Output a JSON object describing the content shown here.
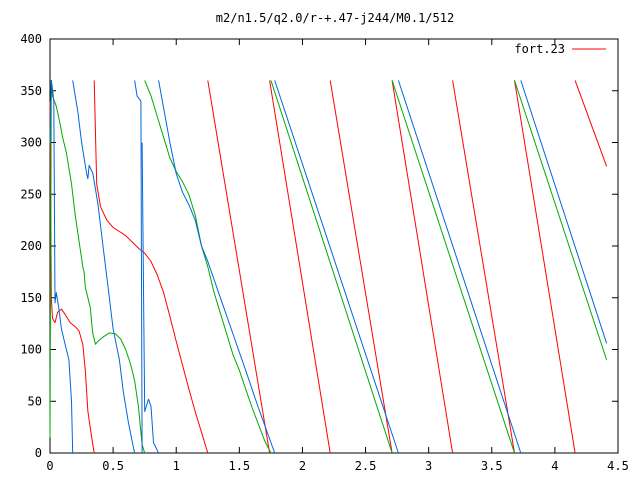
{
  "chart_data": {
    "type": "line",
    "title": "m2/n1.5/q2.0/r-+.47-j244/M0.1/512",
    "xlabel": "",
    "ylabel": "",
    "xlim": [
      0,
      4.5
    ],
    "ylim": [
      0,
      400
    ],
    "xticks": [
      0,
      0.5,
      1,
      1.5,
      2,
      2.5,
      3,
      3.5,
      4,
      4.5
    ],
    "xtick_labels": [
      "0",
      "0.5",
      "1",
      "1.5",
      "2",
      "2.5",
      "3",
      "3.5",
      "4",
      "4.5"
    ],
    "yticks": [
      0,
      50,
      100,
      150,
      200,
      250,
      300,
      350,
      400
    ],
    "ytick_labels": [
      "0",
      "50",
      "100",
      "150",
      "200",
      "250",
      "300",
      "350",
      "400"
    ],
    "grid": false,
    "legend": {
      "position": "top-right",
      "entries": [
        {
          "name": "fort.23",
          "color": "#ff0000"
        }
      ]
    },
    "series": [
      {
        "name": "fort.23",
        "color": "#ff0000",
        "points": [
          [
            0,
            340
          ],
          [
            0.01,
            150
          ],
          [
            0.02,
            130
          ],
          [
            0.04,
            126
          ],
          [
            0.06,
            136
          ],
          [
            0.09,
            139
          ],
          [
            0.12,
            134
          ],
          [
            0.16,
            126
          ],
          [
            0.2,
            122
          ],
          [
            0.23,
            118
          ],
          [
            0.26,
            105
          ],
          [
            0.28,
            80
          ],
          [
            0.3,
            40
          ],
          [
            0.33,
            15
          ],
          [
            0.35,
            0
          ],
          null,
          [
            0.35,
            360
          ],
          [
            0.37,
            260
          ],
          [
            0.4,
            238
          ],
          [
            0.45,
            225
          ],
          [
            0.5,
            218
          ],
          [
            0.55,
            214
          ],
          [
            0.6,
            210
          ],
          [
            0.65,
            204
          ],
          [
            0.7,
            198
          ],
          [
            0.75,
            193
          ],
          [
            0.8,
            185
          ],
          [
            0.85,
            172
          ],
          [
            0.9,
            155
          ],
          [
            0.95,
            132
          ],
          [
            1.0,
            108
          ],
          [
            1.05,
            85
          ],
          [
            1.1,
            62
          ],
          [
            1.15,
            40
          ],
          [
            1.2,
            20
          ],
          [
            1.25,
            0
          ],
          null,
          [
            1.25,
            360
          ],
          [
            1.74,
            0
          ],
          null,
          [
            1.74,
            360
          ],
          [
            2.22,
            0
          ],
          null,
          [
            2.22,
            360
          ],
          [
            2.71,
            0
          ],
          null,
          [
            2.71,
            360
          ],
          [
            3.19,
            0
          ],
          null,
          [
            3.19,
            360
          ],
          [
            3.68,
            0
          ],
          null,
          [
            3.68,
            360
          ],
          [
            4.16,
            0
          ],
          null,
          [
            4.16,
            360
          ],
          [
            4.41,
            277
          ]
        ]
      },
      {
        "color": "#00aa00",
        "points": [
          [
            0,
            15
          ],
          [
            0.01,
            360
          ],
          [
            0.02,
            345
          ],
          [
            0.05,
            335
          ],
          [
            0.08,
            318
          ],
          [
            0.1,
            305
          ],
          [
            0.13,
            290
          ],
          [
            0.17,
            260
          ],
          [
            0.2,
            230
          ],
          [
            0.23,
            205
          ],
          [
            0.26,
            180
          ],
          [
            0.27,
            175
          ],
          [
            0.28,
            160
          ],
          [
            0.3,
            150
          ],
          [
            0.32,
            140
          ],
          [
            0.33,
            125
          ],
          [
            0.34,
            115
          ],
          [
            0.36,
            105
          ],
          [
            0.38,
            108
          ],
          [
            0.42,
            112
          ],
          [
            0.47,
            116
          ],
          [
            0.52,
            115
          ],
          [
            0.56,
            110
          ],
          [
            0.6,
            100
          ],
          [
            0.64,
            85
          ],
          [
            0.67,
            70
          ],
          [
            0.7,
            45
          ],
          [
            0.72,
            20
          ],
          [
            0.73,
            8
          ],
          [
            0.75,
            0
          ],
          null,
          [
            0.75,
            360
          ],
          [
            0.8,
            345
          ],
          [
            0.85,
            325
          ],
          [
            0.9,
            305
          ],
          [
            0.95,
            285
          ],
          [
            1.0,
            272
          ],
          [
            1.05,
            262
          ],
          [
            1.1,
            250
          ],
          [
            1.15,
            230
          ],
          [
            1.2,
            200
          ],
          [
            1.25,
            180
          ],
          [
            1.3,
            155
          ],
          [
            1.35,
            135
          ],
          [
            1.4,
            115
          ],
          [
            1.45,
            95
          ],
          [
            1.5,
            80
          ],
          [
            1.55,
            62
          ],
          [
            1.6,
            44
          ],
          [
            1.65,
            28
          ],
          [
            1.7,
            12
          ],
          [
            1.75,
            0
          ],
          null,
          [
            1.75,
            360
          ],
          [
            2.71,
            0
          ],
          null,
          [
            2.71,
            360
          ],
          [
            3.68,
            0
          ],
          null,
          [
            3.68,
            360
          ],
          [
            4.41,
            90
          ]
        ]
      },
      {
        "color": "#0066dd",
        "points": [
          [
            0,
            300
          ],
          [
            0.01,
            360
          ],
          [
            0.02,
            352
          ],
          [
            0.03,
            340
          ],
          [
            0.04,
            145
          ],
          [
            0.05,
            155
          ],
          [
            0.07,
            140
          ],
          [
            0.09,
            120
          ],
          [
            0.12,
            105
          ],
          [
            0.15,
            90
          ],
          [
            0.17,
            50
          ],
          [
            0.18,
            0
          ],
          null,
          [
            0.18,
            360
          ],
          [
            0.22,
            330
          ],
          [
            0.25,
            300
          ],
          [
            0.27,
            285
          ],
          [
            0.29,
            270
          ],
          [
            0.3,
            265
          ],
          [
            0.31,
            278
          ],
          [
            0.34,
            270
          ],
          [
            0.38,
            240
          ],
          [
            0.42,
            200
          ],
          [
            0.46,
            160
          ],
          [
            0.5,
            120
          ],
          [
            0.55,
            90
          ],
          [
            0.58,
            60
          ],
          [
            0.62,
            30
          ],
          [
            0.65,
            12
          ],
          [
            0.67,
            0
          ],
          null,
          [
            0.67,
            360
          ],
          [
            0.69,
            345
          ],
          [
            0.72,
            340
          ],
          [
            0.73,
            0
          ],
          null,
          [
            0.73,
            300
          ],
          [
            0.75,
            40
          ],
          [
            0.78,
            52
          ],
          [
            0.8,
            45
          ],
          [
            0.82,
            10
          ],
          [
            0.86,
            0
          ],
          null,
          [
            0.86,
            360
          ],
          [
            0.95,
            300
          ],
          [
            1.0,
            270
          ],
          [
            1.05,
            252
          ],
          [
            1.1,
            240
          ],
          [
            1.15,
            225
          ],
          [
            1.2,
            200
          ],
          [
            1.25,
            185
          ],
          [
            1.35,
            150
          ],
          [
            1.45,
            115
          ],
          [
            1.55,
            80
          ],
          [
            1.65,
            44
          ],
          [
            1.78,
            0
          ],
          null,
          [
            1.78,
            360
          ],
          [
            2.76,
            0
          ],
          null,
          [
            2.76,
            360
          ],
          [
            3.73,
            0
          ],
          null,
          [
            3.73,
            360
          ],
          [
            4.41,
            106
          ]
        ]
      }
    ]
  }
}
